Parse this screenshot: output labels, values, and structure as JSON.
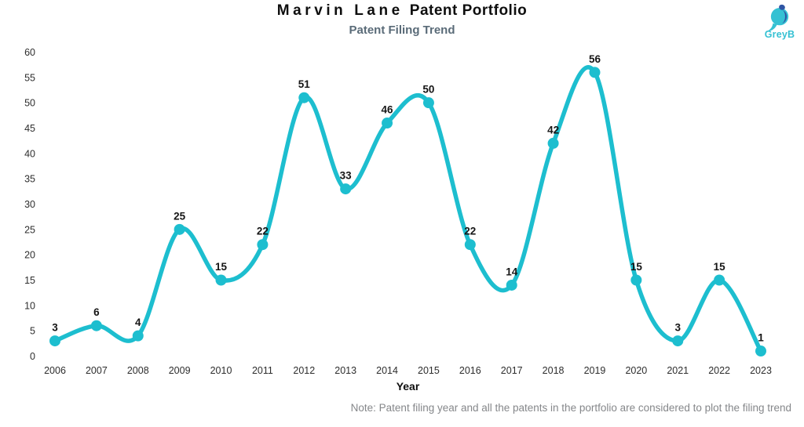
{
  "header": {
    "title_name": "Marvin Lane",
    "title_rest": "Patent Portfolio",
    "subtitle": "Patent Filing Trend"
  },
  "logo": {
    "text": "GreyB"
  },
  "colors": {
    "accent_teal": "#1dbecf",
    "logo_teal": "#35c1d3",
    "logo_navy": "#2f55a4",
    "title": "#0e0e0e",
    "subtitle": "#5a6b78",
    "tick": "#2d2d2d",
    "label": "#151515",
    "note": "#85878a"
  },
  "footer": {
    "note": "Note: Patent filing year and all the patents in the portfolio are considered to plot the filing trend"
  },
  "chart_data": {
    "type": "line",
    "title": "Marvin Lane Patent Portfolio",
    "subtitle": "Patent Filing Trend",
    "categories": [
      "2006",
      "2007",
      "2008",
      "2009",
      "2010",
      "2011",
      "2012",
      "2013",
      "2014",
      "2015",
      "2016",
      "2017",
      "2018",
      "2019",
      "2020",
      "2021",
      "2022",
      "2023"
    ],
    "values": [
      3,
      6,
      4,
      25,
      15,
      22,
      51,
      33,
      46,
      50,
      22,
      14,
      42,
      56,
      15,
      3,
      15,
      1
    ],
    "xlabel": "Year",
    "ylabel": "",
    "ylim": [
      0,
      60
    ],
    "ytick_step": 5,
    "grid": false,
    "legend": "none",
    "smooth": true,
    "line_color": "#1dbecf",
    "marker_color": "#1dbecf",
    "data_labels": true
  }
}
